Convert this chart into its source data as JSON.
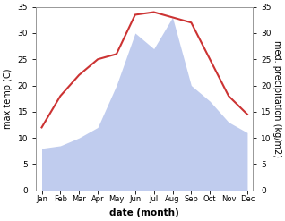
{
  "months": [
    "Jan",
    "Feb",
    "Mar",
    "Apr",
    "May",
    "Jun",
    "Jul",
    "Aug",
    "Sep",
    "Oct",
    "Nov",
    "Dec"
  ],
  "temperature": [
    12,
    18,
    22,
    25,
    26,
    33.5,
    34,
    33,
    32,
    25,
    18,
    14.5
  ],
  "precipitation": [
    8,
    8.5,
    10,
    12,
    20,
    30,
    27,
    33,
    20,
    17,
    13,
    11
  ],
  "temp_color": "#cc3333",
  "precip_color": "#c0ccee",
  "ylabel_left": "max temp (C)",
  "ylabel_right": "med. precipitation (kg/m2)",
  "xlabel": "date (month)",
  "ylim": [
    0,
    35
  ],
  "yticks": [
    0,
    5,
    10,
    15,
    20,
    25,
    30,
    35
  ],
  "background_color": "#ffffff",
  "spine_color": "#999999"
}
